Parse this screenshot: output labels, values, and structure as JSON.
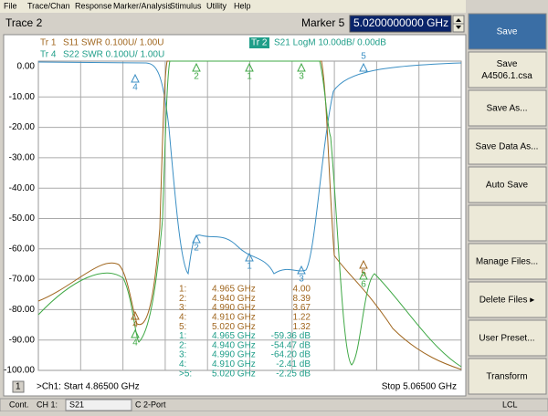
{
  "menu": [
    "File",
    "Trace/Chan",
    "Response",
    "Marker/Analysis",
    "Stimulus",
    "Utility",
    "Help"
  ],
  "toolbar": {
    "trace": "Trace 2",
    "marker": "Marker 5",
    "marker_value": "5.0200000000 GHz"
  },
  "traces": [
    {
      "id": "Tr 1",
      "desc": "S11 SWR 0.100U/ 1.00U"
    },
    {
      "id": "Tr 4",
      "desc": "S22 SWR 0.100U/ 1.00U"
    },
    {
      "id": "Tr 2",
      "desc": "S21 LogM 10.00dB/ 0.00dB"
    }
  ],
  "y_axis_labels": [
    "0.00",
    "-10.00",
    "-20.00",
    "-30.00",
    "-40.00",
    "-50.00",
    "-60.00",
    "-70.00",
    "-80.00",
    "-90.00",
    "-100.00"
  ],
  "marker_flags": {
    "top": [
      "4",
      "2",
      "1",
      "3",
      "5"
    ],
    "bottom": [
      "2",
      "1",
      "3",
      "5",
      "6",
      "4",
      "4"
    ]
  },
  "marker_table": [
    [
      "1:",
      "4.965 GHz",
      "4.00"
    ],
    [
      "2:",
      "4.940 GHz",
      "8.39"
    ],
    [
      "3:",
      "4.990 GHz",
      "3.67"
    ],
    [
      "4:",
      "4.910 GHz",
      "1.22"
    ],
    [
      "5:",
      "5.020 GHz",
      "1.32"
    ],
    [
      "1:",
      "4.965 GHz",
      "-59.36 dB"
    ],
    [
      "2:",
      "4.940 GHz",
      "-54.47 dB"
    ],
    [
      "3:",
      "4.990 GHz",
      "-64.20 dB"
    ],
    [
      "4:",
      "4.910 GHz",
      "-2.41 dB"
    ],
    [
      ">5:",
      "5.020 GHz",
      "-2.25 dB"
    ]
  ],
  "footer": {
    "channel_no": "1",
    "start": ">Ch1: Start 4.86500 GHz",
    "stop": "Stop 5.06500 GHz"
  },
  "softkeys": [
    "Save",
    "Save\nA4506.1.csa",
    "Save As...",
    "Save Data As...",
    "Auto Save",
    "",
    "Manage Files...",
    "Delete Files ▸",
    "User Preset...",
    "Transform"
  ],
  "status": [
    "Cont.",
    "CH 1:",
    "S21",
    "C 2-Port",
    "LCL"
  ]
}
